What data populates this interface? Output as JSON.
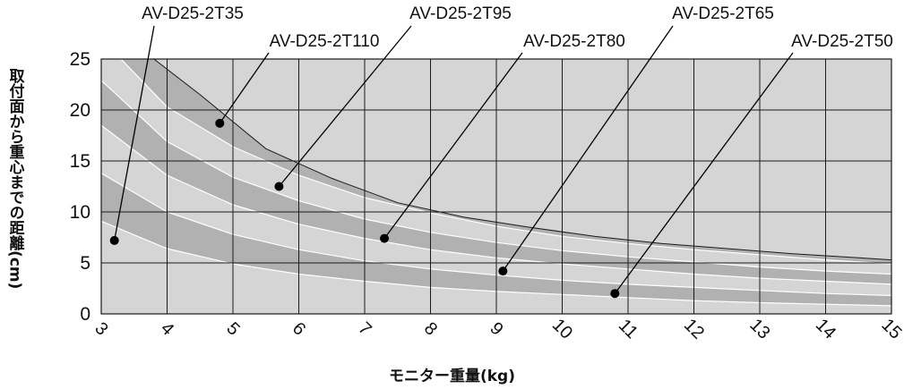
{
  "chart_data": {
    "type": "area",
    "title": "",
    "ylabel": "取付面から重心までの距離(cm)",
    "xlabel": "モニター重量(kg)",
    "xlim": [
      3,
      15
    ],
    "ylim": [
      0,
      25
    ],
    "xticks": [
      3,
      4,
      5,
      6,
      7,
      8,
      9,
      10,
      11,
      12,
      13,
      14,
      15
    ],
    "yticks": [
      0,
      5,
      10,
      15,
      20,
      25
    ],
    "grid": true,
    "series": [
      {
        "name": "AV-D25-2T110",
        "x": [
          3.8,
          4.5,
          5.5,
          6.5,
          7.5,
          8.5,
          9.5,
          10.5,
          11.5,
          12.5,
          13.5,
          14.5,
          15
        ],
        "y": [
          25,
          21.5,
          16.2,
          13.3,
          10.9,
          9.5,
          8.5,
          7.6,
          6.9,
          6.4,
          5.9,
          5.5,
          5.3
        ]
      },
      {
        "name": "AV-D25-2T95",
        "x": [
          3.3,
          4,
          5,
          6,
          7,
          8,
          9,
          10,
          11,
          12,
          13,
          14,
          15
        ],
        "y": [
          25,
          20.3,
          16.4,
          13.6,
          11.4,
          9.9,
          8.6,
          7.6,
          6.9,
          6.3,
          5.8,
          5.3,
          4.9
        ]
      },
      {
        "name": "AV-D25-2T80",
        "x": [
          3,
          4,
          5,
          6,
          7,
          8,
          9,
          10,
          11,
          12,
          13,
          14,
          15
        ],
        "y": [
          22.9,
          16.9,
          13.4,
          11.1,
          9.3,
          8.0,
          7.0,
          6.2,
          5.6,
          5.1,
          4.6,
          4.2,
          3.9
        ]
      },
      {
        "name": "AV-D25-2T65",
        "x": [
          3,
          4,
          5,
          6,
          7,
          8,
          9,
          10,
          11,
          12,
          13,
          14,
          15
        ],
        "y": [
          18.5,
          13.6,
          10.7,
          8.8,
          7.4,
          6.3,
          5.5,
          4.9,
          4.4,
          3.9,
          3.5,
          3.2,
          2.9
        ]
      },
      {
        "name": "AV-D25-2T50",
        "x": [
          3,
          4,
          5,
          6,
          7,
          8,
          9,
          10,
          11,
          12,
          13,
          14,
          15
        ],
        "y": [
          13.8,
          10.0,
          7.8,
          6.3,
          5.2,
          4.4,
          3.8,
          3.3,
          2.9,
          2.6,
          2.3,
          2.0,
          1.8
        ]
      },
      {
        "name": "AV-D25-2T35",
        "x": [
          3,
          4,
          5,
          6,
          7,
          8,
          9,
          10,
          11,
          12,
          13,
          14,
          15
        ],
        "y": [
          9.1,
          6.4,
          4.9,
          3.9,
          3.2,
          2.6,
          2.2,
          1.9,
          1.6,
          1.3,
          1.1,
          0.95,
          0.8
        ]
      }
    ],
    "annotations": [
      {
        "label": "AV-D25-2T35",
        "point": [
          3.2,
          7.2
        ]
      },
      {
        "label": "AV-D25-2T110",
        "point": [
          4.8,
          18.7
        ]
      },
      {
        "label": "AV-D25-2T95",
        "point": [
          5.7,
          12.5
        ]
      },
      {
        "label": "AV-D25-2T80",
        "point": [
          7.3,
          7.4
        ]
      },
      {
        "label": "AV-D25-2T65",
        "point": [
          9.1,
          4.2
        ]
      },
      {
        "label": "AV-D25-2T50",
        "point": [
          10.8,
          2.0
        ]
      }
    ],
    "colors": {
      "dark_band": "#b1b1b1",
      "light_band": "#d5d5d5",
      "band_line": "#ffffff",
      "grid": "#1a1a1a",
      "outline": "#1a1a1a",
      "marker": "#000000"
    }
  }
}
